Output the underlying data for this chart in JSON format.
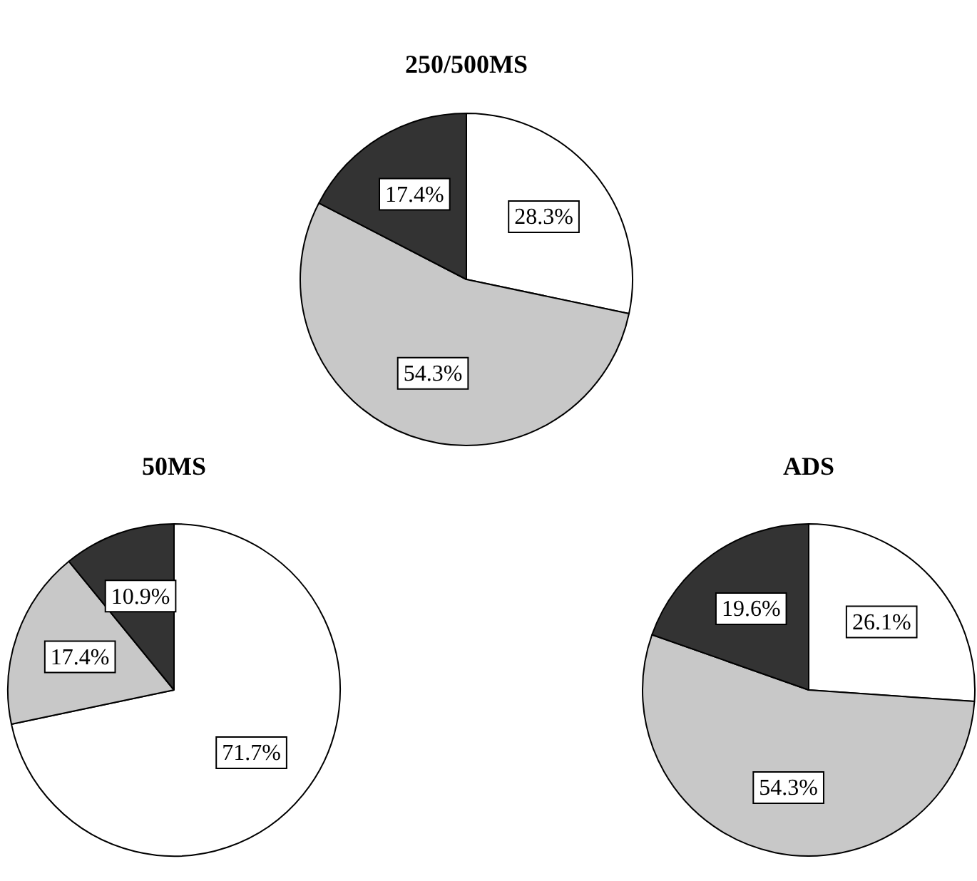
{
  "chart_data": [
    {
      "type": "pie",
      "title": "250/500MS",
      "categories": [
        null,
        null,
        null
      ],
      "values": [
        28.3,
        54.3,
        17.4
      ],
      "value_labels": [
        "28.3%",
        "54.3%",
        "17.4%"
      ],
      "colors": [
        "#ffffff",
        "#c8c8c8",
        "#333333"
      ]
    },
    {
      "type": "pie",
      "title": "50MS",
      "categories": [
        null,
        null,
        null
      ],
      "values": [
        71.7,
        17.4,
        10.9
      ],
      "value_labels": [
        "71.7%",
        "17.4%",
        "10.9%"
      ],
      "colors": [
        "#ffffff",
        "#c8c8c8",
        "#333333"
      ]
    },
    {
      "type": "pie",
      "title": "ADS",
      "categories": [
        null,
        null,
        null
      ],
      "values": [
        26.1,
        54.3,
        19.6
      ],
      "value_labels": [
        "26.1%",
        "54.3%",
        "19.6%"
      ],
      "colors": [
        "#ffffff",
        "#c8c8c8",
        "#333333"
      ]
    }
  ]
}
